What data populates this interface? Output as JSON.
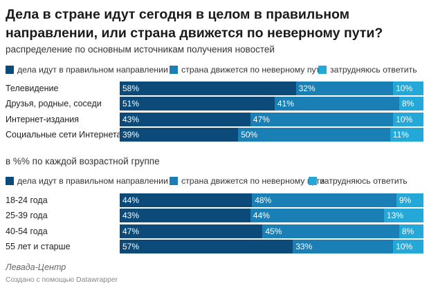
{
  "title": "Дела в стране идут сегодня в целом в правильном направлении, или страна движется по неверному пути?",
  "colors": [
    "#0b4a79",
    "#1a7fb4",
    "#23a8d8"
  ],
  "legend": [
    "дела идут в правильном направлении",
    "страна движется по неверному пути",
    "затрудняюсь ответить"
  ],
  "source": "Левада-Центр",
  "credit": "Создано с помощью Datawrapper",
  "chart_data": [
    {
      "type": "bar",
      "stacked": true,
      "orientation": "horizontal",
      "subtitle": "распределение по основным источникам получения новостей",
      "categories": [
        "Телевидение",
        "Друзья, родные, соседи",
        "Интернет-издания",
        "Социальные сети Интернета"
      ],
      "series": [
        {
          "name": "дела идут в правильном направлении",
          "values": [
            58,
            51,
            43,
            39
          ]
        },
        {
          "name": "страна движется по неверному пути",
          "values": [
            32,
            41,
            47,
            50
          ]
        },
        {
          "name": "затрудняюсь ответить",
          "values": [
            10,
            8,
            10,
            11
          ]
        }
      ],
      "unit": "%"
    },
    {
      "type": "bar",
      "stacked": true,
      "orientation": "horizontal",
      "subtitle": "в %% по каждой возрастной группе",
      "categories": [
        "18-24 года",
        "25-39 года",
        "40-54 года",
        "55 лет и старше"
      ],
      "series": [
        {
          "name": "дела идут в правильном направлении",
          "values": [
            44,
            43,
            47,
            57
          ]
        },
        {
          "name": "страна движется по неверному пути",
          "values": [
            48,
            44,
            45,
            33
          ]
        },
        {
          "name": "затрудняюсь ответить",
          "values": [
            9,
            13,
            8,
            10
          ]
        }
      ],
      "unit": "%"
    }
  ]
}
